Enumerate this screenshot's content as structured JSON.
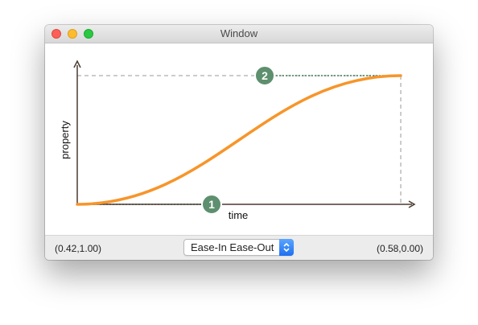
{
  "window": {
    "title": "Window"
  },
  "graph": {
    "x_axis_label": "time",
    "y_axis_label": "property",
    "control_point_1": {
      "label": "1"
    },
    "control_point_2": {
      "label": "2"
    },
    "curve_color": "#f7952a",
    "axis_color": "#4a3a30",
    "handle_color": "#5e8f6e"
  },
  "bottom_bar": {
    "left_coordinates": "(0.42,1.00)",
    "right_coordinates": "(0.58,0.00)",
    "timing_popup": {
      "selected": "Ease-In Ease-Out"
    }
  }
}
